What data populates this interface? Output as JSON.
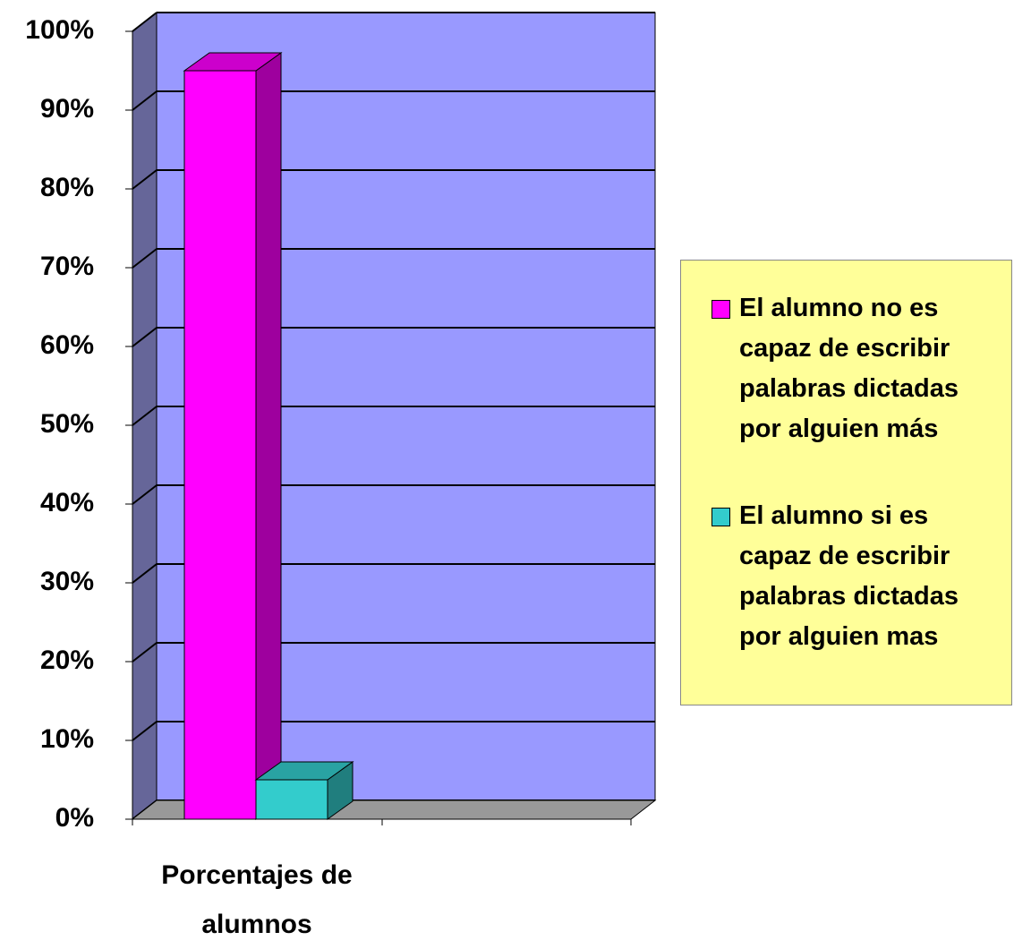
{
  "chart_data": {
    "type": "bar3d",
    "categories": [
      "Porcentajes de alumnos"
    ],
    "series": [
      {
        "name": "El alumno no es capaz de escribir palabras dictadas por alguien más",
        "color": "#ff00ff",
        "values": [
          95
        ]
      },
      {
        "name": "El alumno si es capaz de escribir palabras dictadas por alguien mas",
        "color": "#33cccc",
        "values": [
          5
        ]
      }
    ],
    "ylim": [
      0,
      100
    ],
    "yticks": [
      {
        "value": 0,
        "label": "0%"
      },
      {
        "value": 10,
        "label": "10%"
      },
      {
        "value": 20,
        "label": "20%"
      },
      {
        "value": 30,
        "label": "30%"
      },
      {
        "value": 40,
        "label": "40%"
      },
      {
        "value": 50,
        "label": "50%"
      },
      {
        "value": 60,
        "label": "60%"
      },
      {
        "value": 70,
        "label": "70%"
      },
      {
        "value": 80,
        "label": "80%"
      },
      {
        "value": 90,
        "label": "90%"
      },
      {
        "value": 100,
        "label": "100%"
      }
    ],
    "grid": true,
    "legend": "right"
  }
}
